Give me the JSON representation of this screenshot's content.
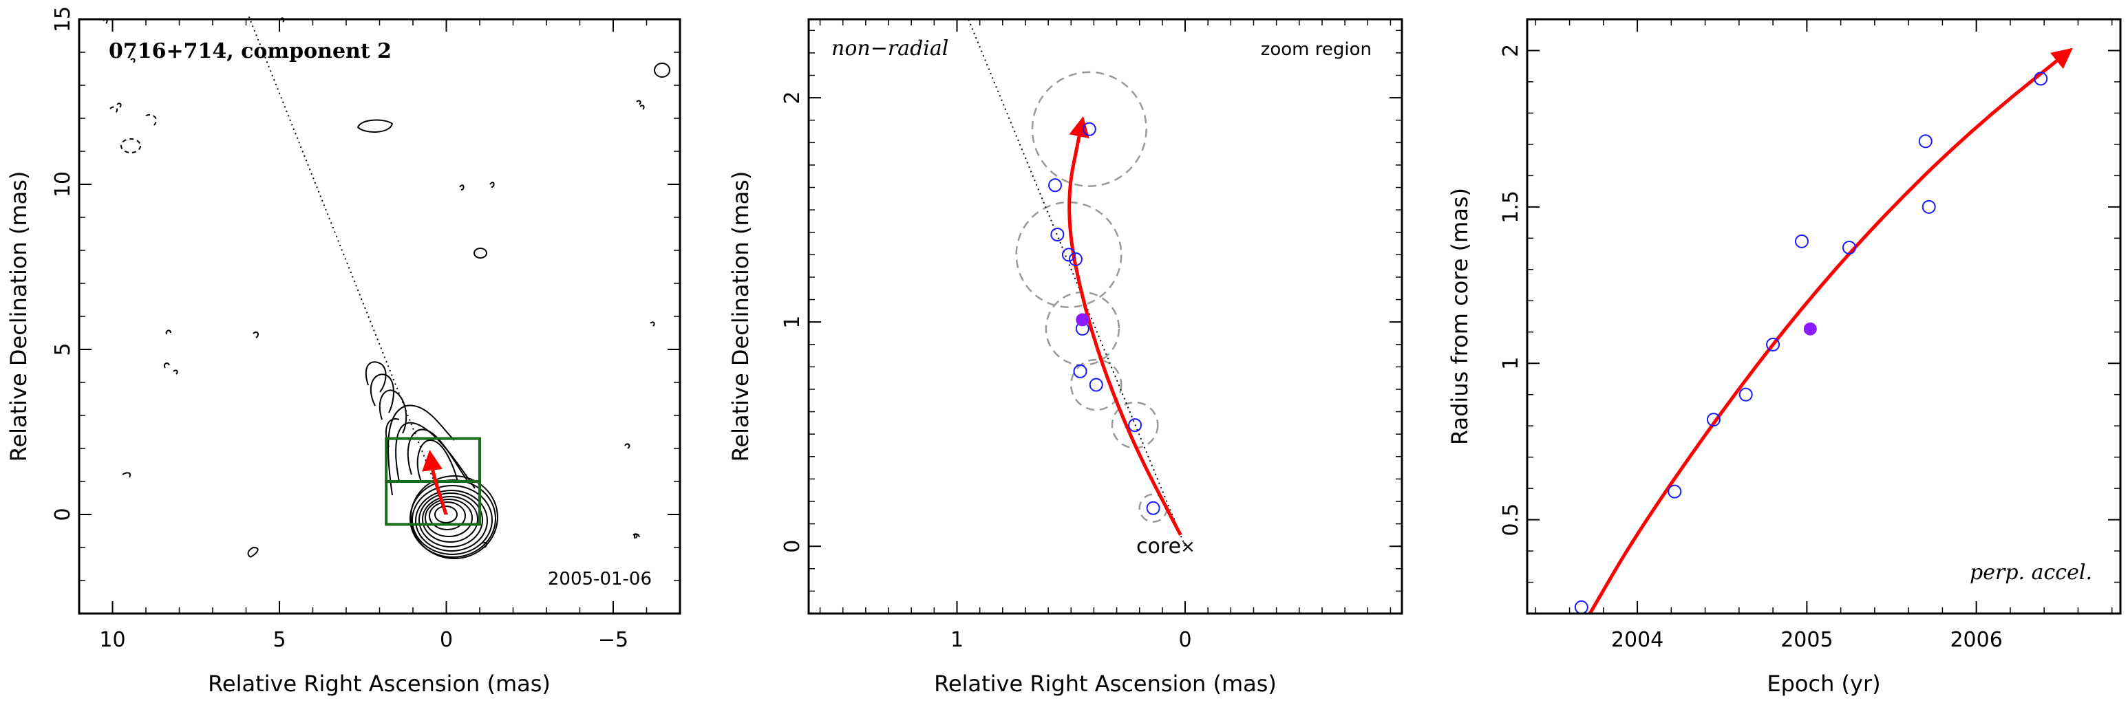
{
  "chart_data": [
    {
      "type": "contour",
      "title": "0716+714, component 2",
      "date": "2005-01-06",
      "xlabel": "Relative Right Ascension (mas)",
      "ylabel": "Relative Declination (mas)",
      "xlim": [
        11.0,
        -7.0
      ],
      "ylim": [
        -3.0,
        15.0
      ],
      "xticks": [
        10,
        5,
        0,
        -5
      ],
      "yticks": [
        0,
        5,
        10,
        15
      ],
      "contour_color": "#000000",
      "box_color": "#1a6b1a",
      "arrow_color": "#ff0000",
      "zoom_boxes": [
        {
          "x_range": [
            1.8,
            -1.0
          ],
          "y_range": [
            1.0,
            2.3
          ]
        },
        {
          "x_range": [
            1.8,
            -1.0
          ],
          "y_range": [
            -0.3,
            1.0
          ]
        }
      ],
      "arrow": {
        "from": [
          0.0,
          0.0
        ],
        "to": [
          0.5,
          1.85
        ]
      },
      "ridge_line": {
        "from": [
          0.0,
          0.0
        ],
        "to": [
          6.0,
          15.0
        ]
      }
    },
    {
      "type": "scatter",
      "annotation_left": "non−radial",
      "annotation_right": "zoom region",
      "core_label": "core",
      "xlabel": "Relative Right Ascension (mas)",
      "ylabel": "Relative Declination (mas)",
      "xlim": [
        1.65,
        -0.95
      ],
      "ylim": [
        -0.3,
        2.35
      ],
      "xticks": [
        1,
        0
      ],
      "yticks": [
        0,
        1,
        2
      ],
      "point_color": "#1a1aff",
      "filled_color": "#8a1aff",
      "circle_color": "#999999",
      "arrow_color": "#ff0000",
      "points": [
        {
          "x": 0.42,
          "y": 1.86,
          "r": 0.25
        },
        {
          "x": 0.57,
          "y": 1.61,
          "r": 0.0
        },
        {
          "x": 0.56,
          "y": 1.39,
          "r": 0.0
        },
        {
          "x": 0.51,
          "y": 1.3,
          "r": 0.23
        },
        {
          "x": 0.48,
          "y": 1.28,
          "r": 0.0
        },
        {
          "x": 0.45,
          "y": 0.97,
          "r": 0.16
        },
        {
          "x": 0.46,
          "y": 0.78,
          "r": 0.0
        },
        {
          "x": 0.39,
          "y": 0.72,
          "r": 0.11
        },
        {
          "x": 0.22,
          "y": 0.54,
          "r": 0.1
        },
        {
          "x": 0.14,
          "y": 0.17,
          "r": 0.06
        }
      ],
      "filled_point": {
        "x": 0.45,
        "y": 1.01
      },
      "arrow_path": [
        [
          0.02,
          0.05
        ],
        [
          0.25,
          0.5
        ],
        [
          0.43,
          1.0
        ],
        [
          0.53,
          1.5
        ],
        [
          0.45,
          1.9
        ]
      ],
      "ridge_line": {
        "from": [
          0.0,
          0.0
        ],
        "to": [
          0.95,
          2.35
        ]
      }
    },
    {
      "type": "scatter",
      "annotation": "perp. accel.",
      "xlabel": "Epoch (yr)",
      "ylabel": "Radius from core (mas)",
      "xlim": [
        2003.35,
        2006.85
      ],
      "ylim": [
        0.2,
        2.1
      ],
      "xticks": [
        2004,
        2005,
        2006
      ],
      "yticks": [
        0.5,
        1,
        1.5,
        2
      ],
      "point_color": "#1a1aff",
      "filled_color": "#8a1aff",
      "arrow_color": "#ff0000",
      "points": [
        {
          "x": 2003.67,
          "y": 0.22
        },
        {
          "x": 2004.22,
          "y": 0.59
        },
        {
          "x": 2004.45,
          "y": 0.82
        },
        {
          "x": 2004.64,
          "y": 0.9
        },
        {
          "x": 2004.8,
          "y": 1.06
        },
        {
          "x": 2004.97,
          "y": 1.39
        },
        {
          "x": 2005.25,
          "y": 1.37
        },
        {
          "x": 2005.7,
          "y": 1.71
        },
        {
          "x": 2005.72,
          "y": 1.5
        },
        {
          "x": 2006.38,
          "y": 1.91
        }
      ],
      "filled_point": {
        "x": 2005.02,
        "y": 1.11
      },
      "fit_curve": [
        [
          2003.72,
          0.2
        ],
        [
          2004.0,
          0.46
        ],
        [
          2004.5,
          0.85
        ],
        [
          2005.0,
          1.2
        ],
        [
          2005.5,
          1.5
        ],
        [
          2006.0,
          1.76
        ],
        [
          2006.55,
          2.0
        ]
      ]
    }
  ]
}
